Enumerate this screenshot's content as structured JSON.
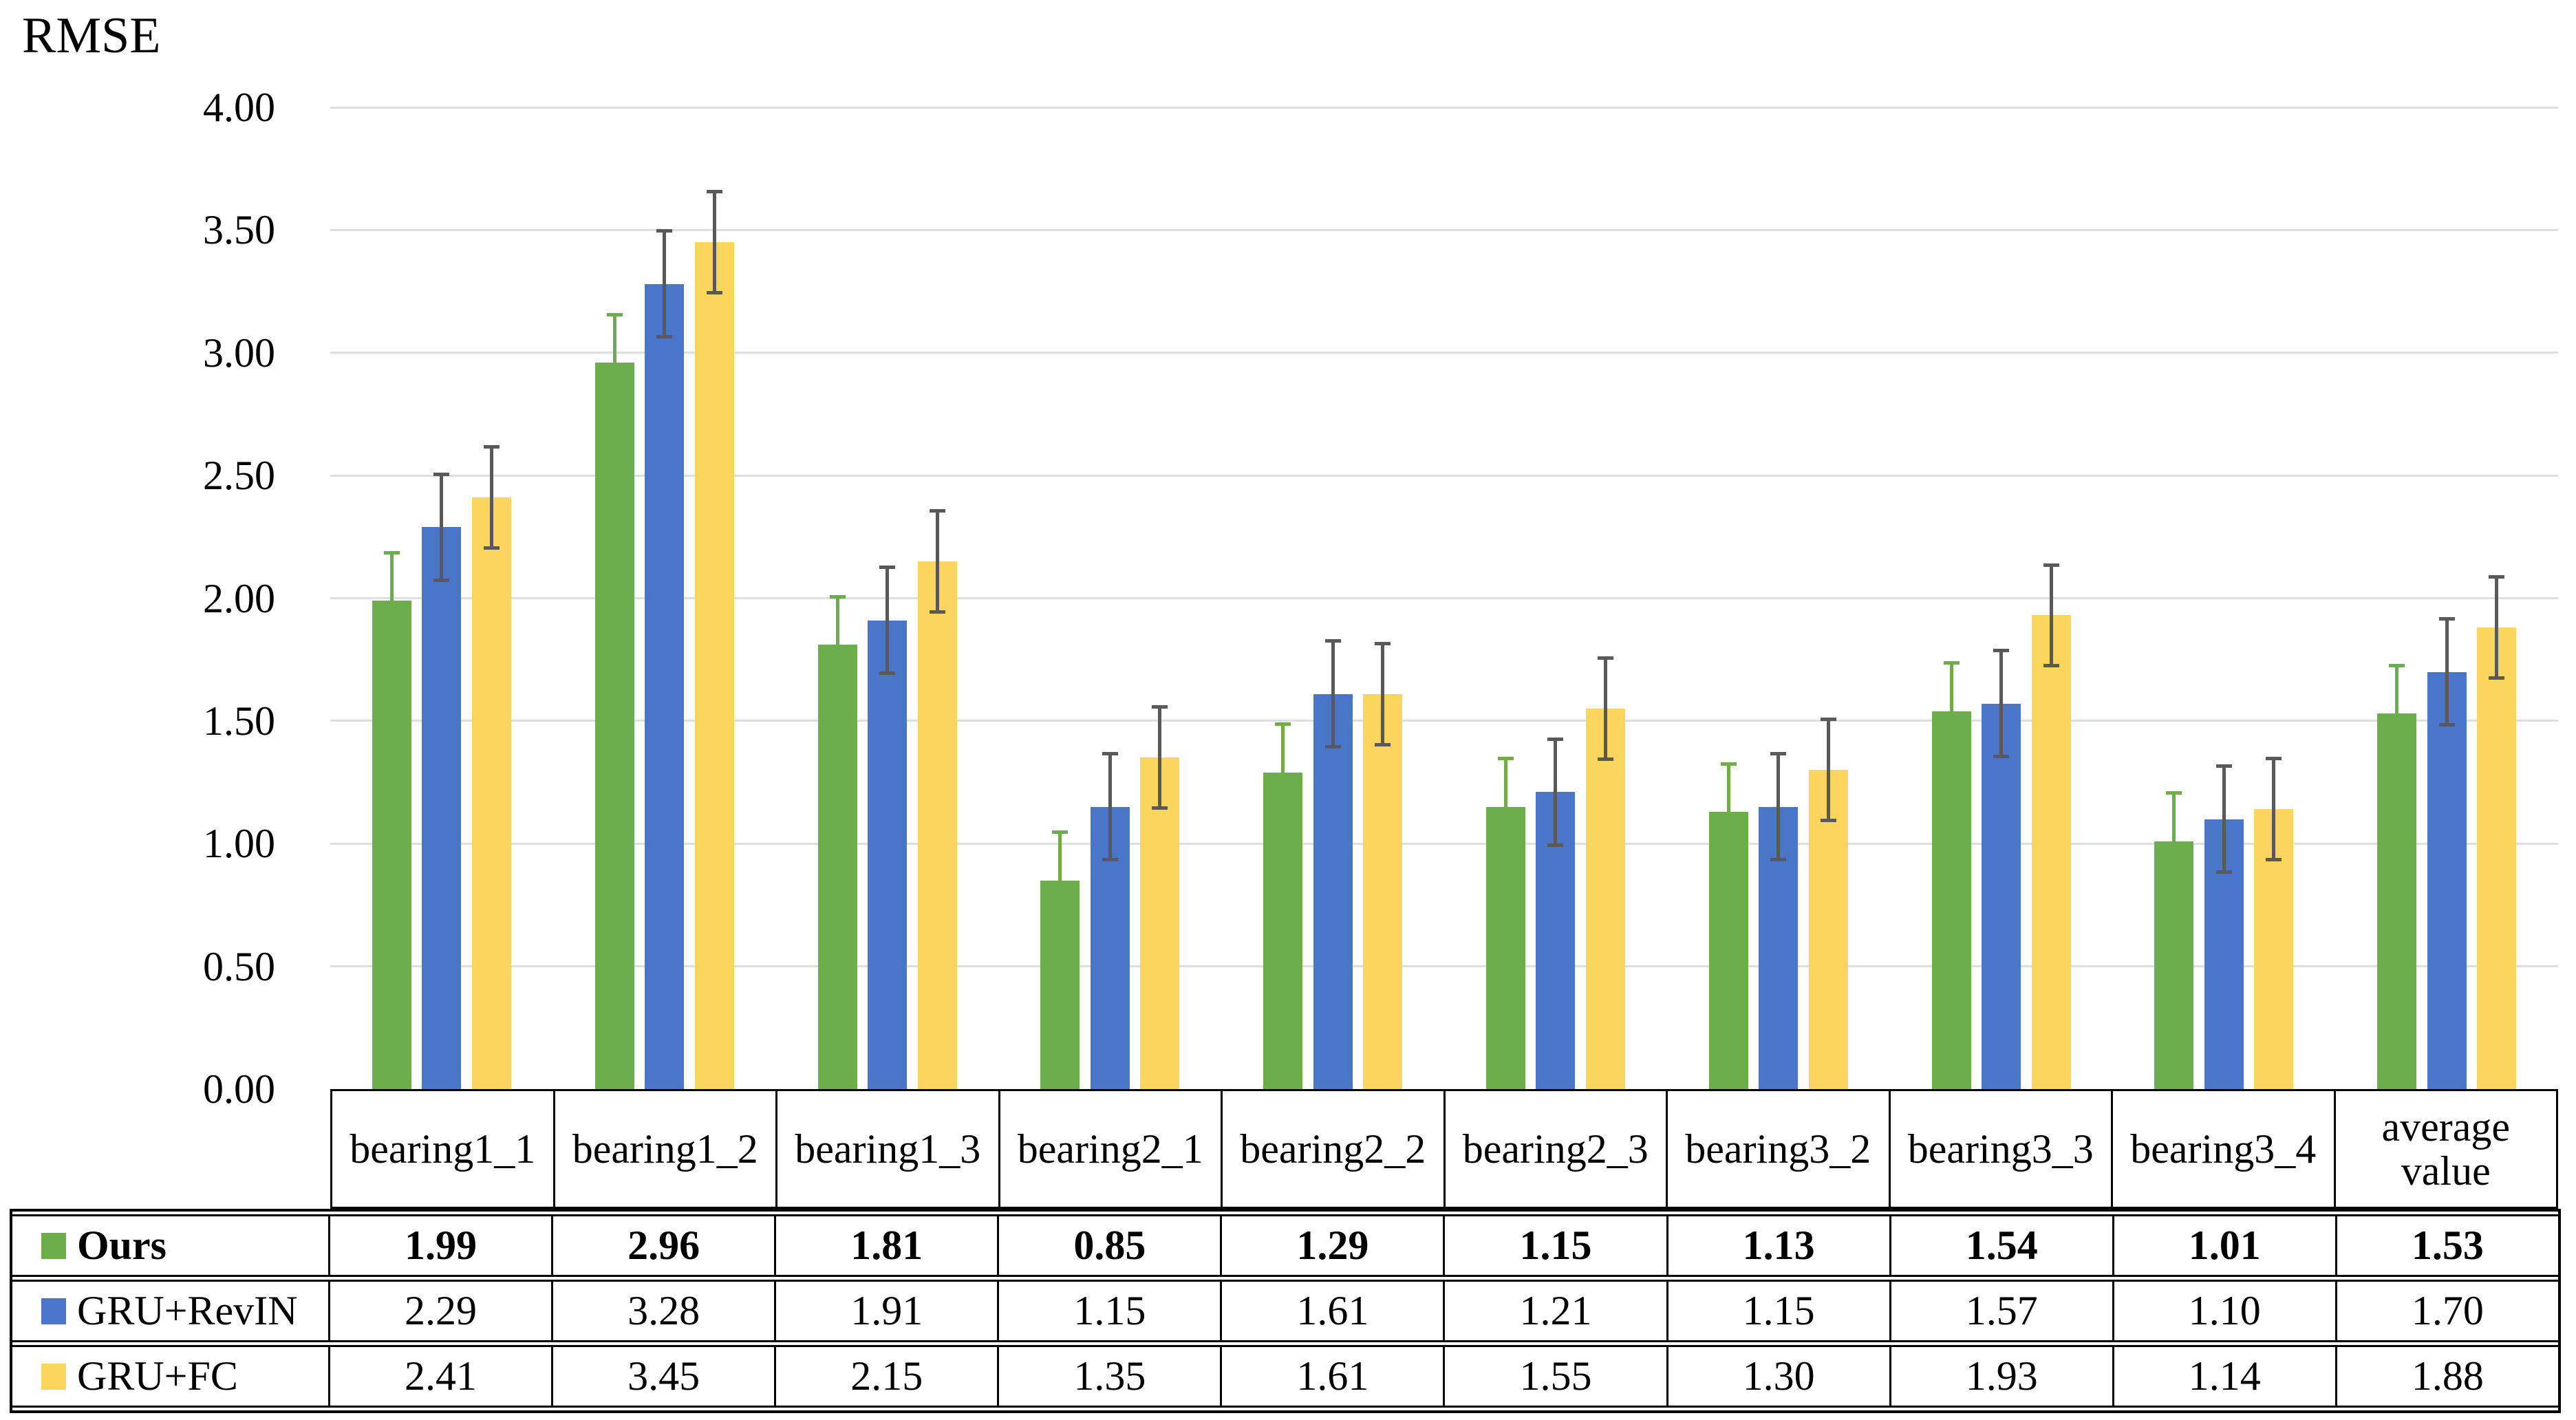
{
  "title": "RMSE",
  "chart_data": {
    "type": "bar",
    "title": "RMSE",
    "ylabel": "RMSE",
    "xlabel": "",
    "grid": true,
    "ylim": [
      0,
      4
    ],
    "yticks": [
      "0.00",
      "0.50",
      "1.00",
      "1.50",
      "2.00",
      "2.50",
      "3.00",
      "3.50",
      "4.00"
    ],
    "legend_position": "table-left",
    "categories": [
      "bearing1_1",
      "bearing1_2",
      "bearing1_3",
      "bearing2_1",
      "bearing2_2",
      "bearing2_3",
      "bearing3_2",
      "bearing3_3",
      "bearing3_4",
      "average value"
    ],
    "series": [
      {
        "name": "Ours",
        "color": "#6BAE4A",
        "values": [
          1.99,
          2.96,
          1.81,
          0.85,
          1.29,
          1.15,
          1.13,
          1.54,
          1.01,
          1.53
        ],
        "display_values": [
          "1.99",
          "2.96",
          "1.81",
          "0.85",
          "1.29",
          "1.15",
          "1.13",
          "1.54",
          "1.01",
          "1.53"
        ],
        "error": 0.2,
        "error_style": "upper",
        "error_color": "#6BAE4A",
        "bold_in_table": true
      },
      {
        "name": "GRU+RevIN",
        "color": "#4A76C9",
        "values": [
          2.29,
          3.28,
          1.91,
          1.15,
          1.61,
          1.21,
          1.15,
          1.57,
          1.1,
          1.7
        ],
        "display_values": [
          "2.29",
          "3.28",
          "1.91",
          "1.15",
          "1.61",
          "1.21",
          "1.15",
          "1.57",
          "1.10",
          "1.70"
        ],
        "error": 0.22,
        "error_style": "both",
        "error_color": "#595959",
        "bold_in_table": false
      },
      {
        "name": "GRU+FC",
        "color": "#FCD55E",
        "values": [
          2.41,
          3.45,
          2.15,
          1.35,
          1.61,
          1.55,
          1.3,
          1.93,
          1.14,
          1.88
        ],
        "display_values": [
          "2.41",
          "3.45",
          "2.15",
          "1.35",
          "1.61",
          "1.55",
          "1.30",
          "1.93",
          "1.14",
          "1.88"
        ],
        "error": 0.21,
        "error_style": "both",
        "error_color": "#595959",
        "bold_in_table": false
      }
    ]
  },
  "colors": {
    "gridline": "#DFDFDF",
    "table_border": "#000000",
    "error_bar_gray": "#595959",
    "background": "#FFFFFF"
  }
}
